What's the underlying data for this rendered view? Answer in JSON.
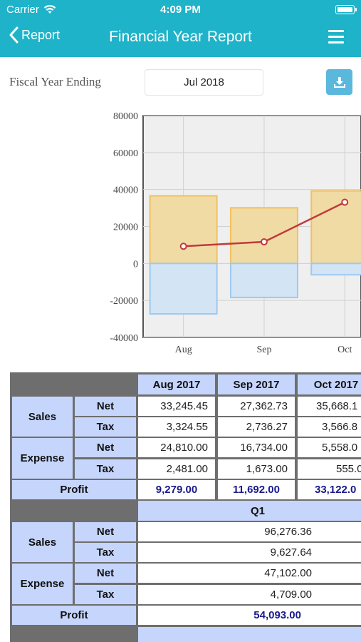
{
  "status_bar": {
    "carrier": "Carrier",
    "time": "4:09 PM"
  },
  "nav": {
    "back_label": "Report",
    "title": "Financial Year Report"
  },
  "fiscal": {
    "label": "Fiscal Year Ending",
    "value": "Jul 2018"
  },
  "chart_data": {
    "type": "bar",
    "categories": [
      "Aug",
      "Sep",
      "Oct"
    ],
    "ylim": [
      -40000,
      80000
    ],
    "yticks": [
      "80000",
      "60000",
      "40000",
      "20000",
      "0",
      "-20000",
      "-40000"
    ],
    "grid": true,
    "series": [
      {
        "kind": "bar",
        "color": "#f0c060",
        "values": [
          36570.0,
          30099.0,
          39235.0
        ]
      },
      {
        "kind": "bar",
        "color": "#9ec9ee",
        "values": [
          -27291.0,
          -18407.0,
          -6113.0
        ]
      },
      {
        "kind": "line",
        "color": "#c0393c",
        "values": [
          9279.0,
          11692.0,
          33122.0
        ]
      }
    ]
  },
  "monthly_table": {
    "columns": [
      "Aug 2017",
      "Sep 2017",
      "Oct 2017"
    ],
    "sales_label": "Sales",
    "expense_label": "Expense",
    "net_label": "Net",
    "tax_label": "Tax",
    "profit_label": "Profit",
    "sales_net": [
      "33,245.45",
      "27,362.73",
      "35,668.1"
    ],
    "sales_tax": [
      "3,324.55",
      "2,736.27",
      "3,566.8"
    ],
    "expense_net": [
      "24,810.00",
      "16,734.00",
      "5,558.0"
    ],
    "expense_tax": [
      "2,481.00",
      "1,673.00",
      "555.0"
    ],
    "profit": [
      "9,279.00",
      "11,692.00",
      "33,122.0"
    ]
  },
  "quarter_table": {
    "header": "Q1",
    "sales_label": "Sales",
    "expense_label": "Expense",
    "net_label": "Net",
    "tax_label": "Tax",
    "profit_label": "Profit",
    "sales_net": "96,276.36",
    "sales_tax": "9,627.64",
    "expense_net": "47,102.00",
    "expense_tax": "4,709.00",
    "profit": "54,093.00"
  },
  "colors": {
    "accent": "#1fb3c9",
    "header_cell": "#c6d5fc",
    "profit_text": "#1a1a8c",
    "download_button": "#5bb8dd"
  }
}
